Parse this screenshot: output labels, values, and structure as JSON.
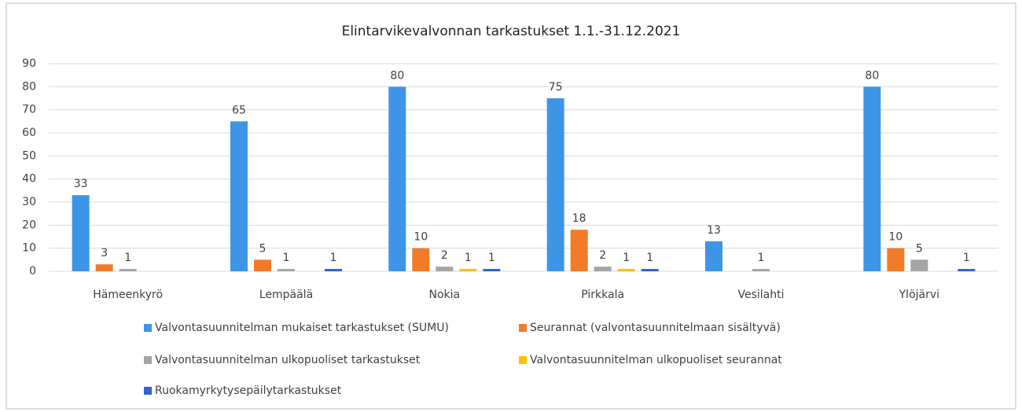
{
  "chart_data": {
    "type": "bar",
    "title": "Elintarvikevalvonnan tarkastukset 1.1.-31.12.2021",
    "categories": [
      "Hämeenkyrö",
      "Lempäälä",
      "Nokia",
      "Pirkkala",
      "Vesilahti",
      "Ylöjärvi"
    ],
    "series": [
      {
        "name": "Valvontasuunnitelman mukaiset tarkastukset (SUMU)",
        "color": "#3e95e6",
        "values": [
          33,
          65,
          80,
          75,
          13,
          80
        ]
      },
      {
        "name": "Seurannat (valvontasuunnitelmaan sisältyvä)",
        "color": "#f07b28",
        "values": [
          3,
          5,
          10,
          18,
          null,
          10
        ]
      },
      {
        "name": "Valvontasuunnitelman ulkopuoliset tarkastukset",
        "color": "#a5a5a5",
        "values": [
          1,
          1,
          2,
          2,
          1,
          5
        ]
      },
      {
        "name": "Valvontasuunnitelman ulkopuoliset seurannat",
        "color": "#ffc000",
        "values": [
          null,
          null,
          1,
          1,
          null,
          null
        ]
      },
      {
        "name": "Ruokamyrkytysepäilytarkastukset",
        "color": "#2e62d6",
        "values": [
          null,
          1,
          1,
          1,
          null,
          1
        ]
      }
    ],
    "ylim": [
      0,
      90
    ],
    "yticks": [
      0,
      10,
      20,
      30,
      40,
      50,
      60,
      70,
      80,
      90
    ],
    "grid": true,
    "legend": "bottom"
  }
}
